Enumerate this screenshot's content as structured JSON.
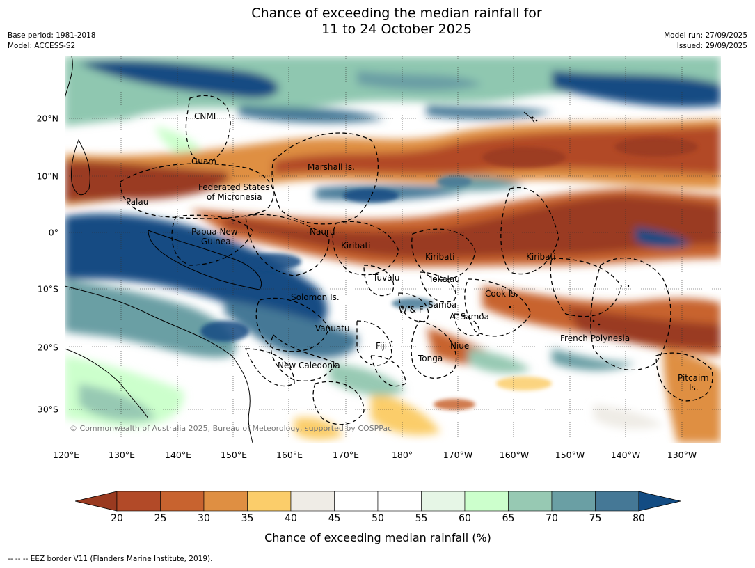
{
  "title_line1": "Chance of exceeding the median rainfall for",
  "title_line2": "11 to 24 October 2025",
  "meta_left": {
    "base_period": "Base period: 1981-2018",
    "model": "Model: ACCESS-S2"
  },
  "meta_right": {
    "model_run": "Model run: 27/09/2025",
    "issued": "Issued: 29/09/2025"
  },
  "lon_labels": [
    "120°E",
    "130°E",
    "140°E",
    "150°E",
    "160°E",
    "170°E",
    "180°",
    "170°W",
    "160°W",
    "150°W",
    "140°W",
    "130°W"
  ],
  "lat_labels": [
    "20°N",
    "10°N",
    "0°",
    "10°S",
    "20°S",
    "30°S"
  ],
  "region_labels": [
    "CNMI",
    "Guam",
    "Marshall Is.",
    "Federated States",
    "of Micronesia",
    "Palau",
    "Papua New",
    "Guinea",
    "Nauru",
    "Kiribati",
    "Kiribati",
    "Kiribati",
    "Tuvalu",
    "Tokelau",
    "Cook Is.",
    "Solomon Is.",
    "Samoa",
    "W & F",
    "A. Samoa",
    "Vanuatu",
    "Fiji",
    "Niue",
    "French Polynesia",
    "Tonga",
    "New Caledonia",
    "Pitcairn",
    "Is."
  ],
  "copyright": "© Commonwealth of Australia 2025, Bureau of Meteorology, supported by COSPPac",
  "colorbar": {
    "ticks": [
      "20",
      "25",
      "30",
      "35",
      "40",
      "45",
      "50",
      "55",
      "60",
      "65",
      "70",
      "75",
      "80"
    ],
    "colors": [
      "#9a3a20",
      "#b24a28",
      "#c8632f",
      "#df8f42",
      "#fbcd6a",
      "#efece6",
      "#ffffff",
      "#ffffff",
      "#e6f6e6",
      "#ccffcc",
      "#97c9b3",
      "#6a9fa4",
      "#457896",
      "#134c83"
    ],
    "label": "Chance of exceeding median rainfall (%)"
  },
  "footnote": "--  --  -- EEZ border V11 (Flanders Marine Institute, 2019)."
}
